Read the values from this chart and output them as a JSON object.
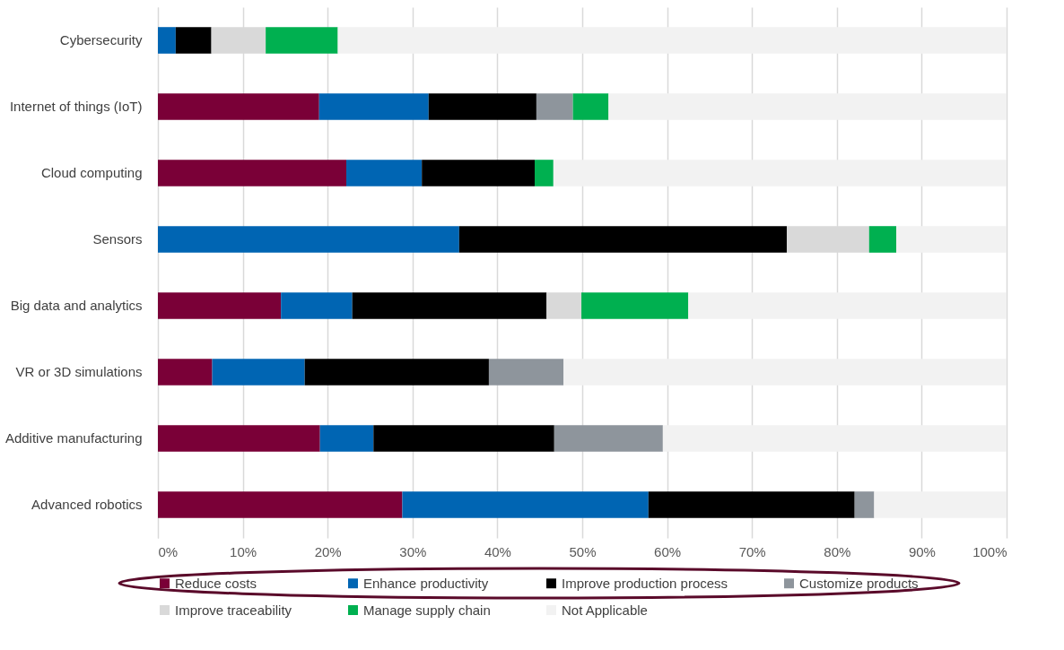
{
  "chart_data": {
    "type": "bar",
    "orientation": "horizontal",
    "stacked": true,
    "categories": [
      "Cybersecurity",
      "Internet of things (IoT)",
      "Cloud computing",
      "Sensors",
      "Big data and analytics",
      "VR or 3D simulations",
      "Additive manufacturing",
      "Advanced robotics"
    ],
    "series": [
      {
        "name": "Reduce costs",
        "color": "#7a0037",
        "values": [
          null,
          19.0,
          22.2,
          null,
          14.5,
          6.4,
          19.1,
          28.8
        ]
      },
      {
        "name": "Enhance productivity",
        "color": "#0065b3",
        "values": [
          2.1,
          12.9,
          8.9,
          35.5,
          8.4,
          10.9,
          6.3,
          29.0
        ]
      },
      {
        "name": "Improve production process",
        "color": "#000000",
        "values": [
          4.2,
          12.7,
          13.3,
          38.6,
          22.9,
          21.7,
          21.3,
          24.3
        ]
      },
      {
        "name": "Customize products",
        "color": "#8e959c",
        "values": [
          null,
          4.3,
          null,
          null,
          null,
          8.8,
          12.8,
          2.3
        ]
      },
      {
        "name": "Improve traceability",
        "color": "#d9d9d9",
        "values": [
          6.4,
          null,
          null,
          9.7,
          4.1,
          null,
          null,
          null
        ]
      },
      {
        "name": "Manage supply chain",
        "color": "#00b050",
        "values": [
          8.5,
          4.2,
          2.2,
          3.2,
          12.6,
          null,
          null,
          null
        ]
      },
      {
        "name": "Not Applicable",
        "color": "#f2f2f2",
        "values": [
          78.8,
          46.9,
          53.4,
          13.0,
          37.5,
          52.2,
          40.5,
          15.6
        ]
      }
    ],
    "xlim": [
      0,
      100
    ],
    "xticks": [
      {
        "value": 0,
        "label": "0%"
      },
      {
        "value": 10,
        "label": "10%"
      },
      {
        "value": 20,
        "label": "20%"
      },
      {
        "value": 30,
        "label": "30%"
      },
      {
        "value": 40,
        "label": "40%"
      },
      {
        "value": 50,
        "label": "50%"
      },
      {
        "value": 60,
        "label": "60%"
      },
      {
        "value": 70,
        "label": "70%"
      },
      {
        "value": 80,
        "label": "80%"
      },
      {
        "value": 90,
        "label": "90%"
      },
      {
        "value": 100,
        "label": "100%"
      }
    ],
    "grid": "x",
    "legend": "bottom"
  }
}
